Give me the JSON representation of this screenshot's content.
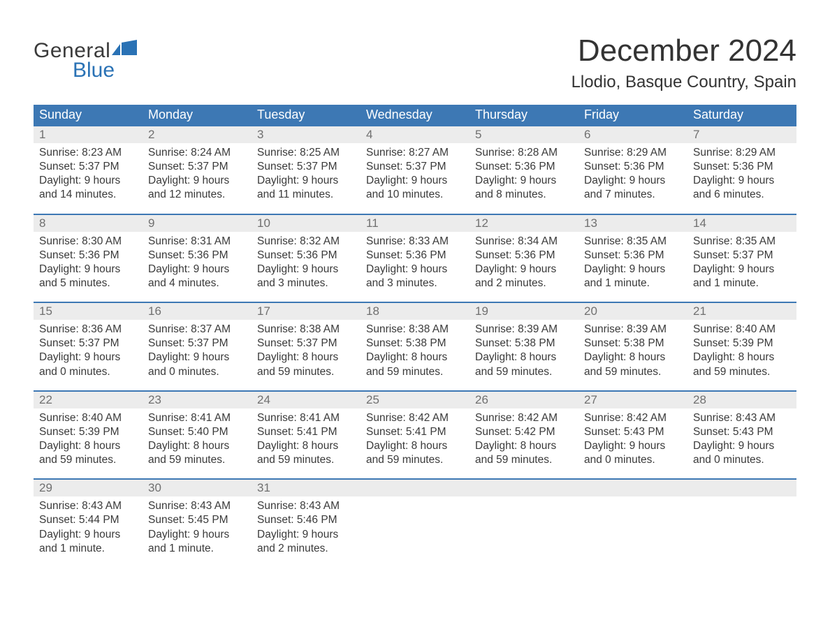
{
  "logo": {
    "text1": "General",
    "text2": "Blue"
  },
  "title": "December 2024",
  "location": "Llodio, Basque Country, Spain",
  "colors": {
    "header_bg": "#3d78b4",
    "header_text": "#ffffff",
    "daynum_bg": "#ececec",
    "daynum_text": "#707070",
    "body_text": "#3a3a3a",
    "rule": "#3d78b4",
    "logo_blue": "#2a72b5"
  },
  "fonts": {
    "title_size_pt": 33,
    "location_size_pt": 18,
    "header_size_pt": 13,
    "daynum_size_pt": 13,
    "body_size_pt": 11.5
  },
  "day_labels": [
    "Sunday",
    "Monday",
    "Tuesday",
    "Wednesday",
    "Thursday",
    "Friday",
    "Saturday"
  ],
  "weeks": [
    [
      {
        "n": "1",
        "sunrise": "8:23 AM",
        "sunset": "5:37 PM",
        "dl1": "9 hours",
        "dl2": "and 14 minutes."
      },
      {
        "n": "2",
        "sunrise": "8:24 AM",
        "sunset": "5:37 PM",
        "dl1": "9 hours",
        "dl2": "and 12 minutes."
      },
      {
        "n": "3",
        "sunrise": "8:25 AM",
        "sunset": "5:37 PM",
        "dl1": "9 hours",
        "dl2": "and 11 minutes."
      },
      {
        "n": "4",
        "sunrise": "8:27 AM",
        "sunset": "5:37 PM",
        "dl1": "9 hours",
        "dl2": "and 10 minutes."
      },
      {
        "n": "5",
        "sunrise": "8:28 AM",
        "sunset": "5:36 PM",
        "dl1": "9 hours",
        "dl2": "and 8 minutes."
      },
      {
        "n": "6",
        "sunrise": "8:29 AM",
        "sunset": "5:36 PM",
        "dl1": "9 hours",
        "dl2": "and 7 minutes."
      },
      {
        "n": "7",
        "sunrise": "8:29 AM",
        "sunset": "5:36 PM",
        "dl1": "9 hours",
        "dl2": "and 6 minutes."
      }
    ],
    [
      {
        "n": "8",
        "sunrise": "8:30 AM",
        "sunset": "5:36 PM",
        "dl1": "9 hours",
        "dl2": "and 5 minutes."
      },
      {
        "n": "9",
        "sunrise": "8:31 AM",
        "sunset": "5:36 PM",
        "dl1": "9 hours",
        "dl2": "and 4 minutes."
      },
      {
        "n": "10",
        "sunrise": "8:32 AM",
        "sunset": "5:36 PM",
        "dl1": "9 hours",
        "dl2": "and 3 minutes."
      },
      {
        "n": "11",
        "sunrise": "8:33 AM",
        "sunset": "5:36 PM",
        "dl1": "9 hours",
        "dl2": "and 3 minutes."
      },
      {
        "n": "12",
        "sunrise": "8:34 AM",
        "sunset": "5:36 PM",
        "dl1": "9 hours",
        "dl2": "and 2 minutes."
      },
      {
        "n": "13",
        "sunrise": "8:35 AM",
        "sunset": "5:36 PM",
        "dl1": "9 hours",
        "dl2": "and 1 minute."
      },
      {
        "n": "14",
        "sunrise": "8:35 AM",
        "sunset": "5:37 PM",
        "dl1": "9 hours",
        "dl2": "and 1 minute."
      }
    ],
    [
      {
        "n": "15",
        "sunrise": "8:36 AM",
        "sunset": "5:37 PM",
        "dl1": "9 hours",
        "dl2": "and 0 minutes."
      },
      {
        "n": "16",
        "sunrise": "8:37 AM",
        "sunset": "5:37 PM",
        "dl1": "9 hours",
        "dl2": "and 0 minutes."
      },
      {
        "n": "17",
        "sunrise": "8:38 AM",
        "sunset": "5:37 PM",
        "dl1": "8 hours",
        "dl2": "and 59 minutes."
      },
      {
        "n": "18",
        "sunrise": "8:38 AM",
        "sunset": "5:38 PM",
        "dl1": "8 hours",
        "dl2": "and 59 minutes."
      },
      {
        "n": "19",
        "sunrise": "8:39 AM",
        "sunset": "5:38 PM",
        "dl1": "8 hours",
        "dl2": "and 59 minutes."
      },
      {
        "n": "20",
        "sunrise": "8:39 AM",
        "sunset": "5:38 PM",
        "dl1": "8 hours",
        "dl2": "and 59 minutes."
      },
      {
        "n": "21",
        "sunrise": "8:40 AM",
        "sunset": "5:39 PM",
        "dl1": "8 hours",
        "dl2": "and 59 minutes."
      }
    ],
    [
      {
        "n": "22",
        "sunrise": "8:40 AM",
        "sunset": "5:39 PM",
        "dl1": "8 hours",
        "dl2": "and 59 minutes."
      },
      {
        "n": "23",
        "sunrise": "8:41 AM",
        "sunset": "5:40 PM",
        "dl1": "8 hours",
        "dl2": "and 59 minutes."
      },
      {
        "n": "24",
        "sunrise": "8:41 AM",
        "sunset": "5:41 PM",
        "dl1": "8 hours",
        "dl2": "and 59 minutes."
      },
      {
        "n": "25",
        "sunrise": "8:42 AM",
        "sunset": "5:41 PM",
        "dl1": "8 hours",
        "dl2": "and 59 minutes."
      },
      {
        "n": "26",
        "sunrise": "8:42 AM",
        "sunset": "5:42 PM",
        "dl1": "8 hours",
        "dl2": "and 59 minutes."
      },
      {
        "n": "27",
        "sunrise": "8:42 AM",
        "sunset": "5:43 PM",
        "dl1": "9 hours",
        "dl2": "and 0 minutes."
      },
      {
        "n": "28",
        "sunrise": "8:43 AM",
        "sunset": "5:43 PM",
        "dl1": "9 hours",
        "dl2": "and 0 minutes."
      }
    ],
    [
      {
        "n": "29",
        "sunrise": "8:43 AM",
        "sunset": "5:44 PM",
        "dl1": "9 hours",
        "dl2": "and 1 minute."
      },
      {
        "n": "30",
        "sunrise": "8:43 AM",
        "sunset": "5:45 PM",
        "dl1": "9 hours",
        "dl2": "and 1 minute."
      },
      {
        "n": "31",
        "sunrise": "8:43 AM",
        "sunset": "5:46 PM",
        "dl1": "9 hours",
        "dl2": "and 2 minutes."
      },
      {
        "empty": true
      },
      {
        "empty": true
      },
      {
        "empty": true
      },
      {
        "empty": true
      }
    ]
  ],
  "labels": {
    "sunrise_prefix": "Sunrise: ",
    "sunset_prefix": "Sunset: ",
    "daylight_prefix": "Daylight: "
  }
}
